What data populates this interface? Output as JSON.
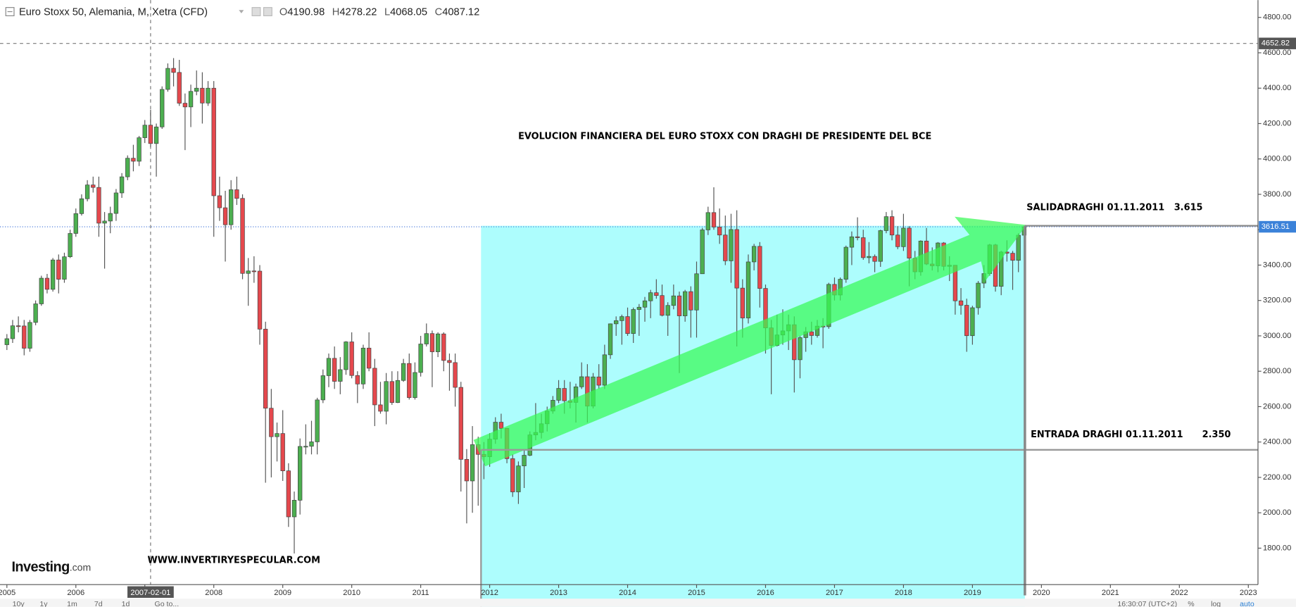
{
  "chart_data": {
    "type": "candlestick",
    "title": "Euro Stoxx 50, Alemania, M, Xetra (CFD)",
    "ohlc_labels": [
      "O",
      "H",
      "L",
      "C"
    ],
    "x": [
      "2005-01-01",
      "2005-02-01",
      "2005-03-01",
      "2005-04-01",
      "2005-05-01",
      "2005-06-01",
      "2005-07-01",
      "2005-08-01",
      "2005-09-01",
      "2005-10-01",
      "2005-11-01",
      "2005-12-01",
      "2006-01-01",
      "2006-02-01",
      "2006-03-01",
      "2006-04-01",
      "2006-05-01",
      "2006-06-01",
      "2006-07-01",
      "2006-08-01",
      "2006-09-01",
      "2006-10-01",
      "2006-11-01",
      "2006-12-01",
      "2007-01-01",
      "2007-02-01",
      "2007-03-01",
      "2007-04-01",
      "2007-05-01",
      "2007-06-01",
      "2007-07-01",
      "2007-08-01",
      "2007-09-01",
      "2007-10-01",
      "2007-11-01",
      "2007-12-01",
      "2008-01-01",
      "2008-02-01",
      "2008-03-01",
      "2008-04-01",
      "2008-05-01",
      "2008-06-01",
      "2008-07-01",
      "2008-08-01",
      "2008-09-01",
      "2008-10-01",
      "2008-11-01",
      "2008-12-01",
      "2009-01-01",
      "2009-02-01",
      "2009-03-01",
      "2009-04-01",
      "2009-05-01",
      "2009-06-01",
      "2009-07-01",
      "2009-08-01",
      "2009-09-01",
      "2009-10-01",
      "2009-11-01",
      "2009-12-01",
      "2010-01-01",
      "2010-02-01",
      "2010-03-01",
      "2010-04-01",
      "2010-05-01",
      "2010-06-01",
      "2010-07-01",
      "2010-08-01",
      "2010-09-01",
      "2010-10-01",
      "2010-11-01",
      "2010-12-01",
      "2011-01-01",
      "2011-02-01",
      "2011-03-01",
      "2011-04-01",
      "2011-05-01",
      "2011-06-01",
      "2011-07-01",
      "2011-08-01",
      "2011-09-01",
      "2011-10-01",
      "2011-11-01",
      "2011-12-01",
      "2012-01-01",
      "2012-02-01",
      "2012-03-01",
      "2012-04-01",
      "2012-05-01",
      "2012-06-01",
      "2012-07-01",
      "2012-08-01",
      "2012-09-01",
      "2012-10-01",
      "2012-11-01",
      "2012-12-01",
      "2013-01-01",
      "2013-02-01",
      "2013-03-01",
      "2013-04-01",
      "2013-05-01",
      "2013-06-01",
      "2013-07-01",
      "2013-08-01",
      "2013-09-01",
      "2013-10-01",
      "2013-11-01",
      "2013-12-01",
      "2014-01-01",
      "2014-02-01",
      "2014-03-01",
      "2014-04-01",
      "2014-05-01",
      "2014-06-01",
      "2014-07-01",
      "2014-08-01",
      "2014-09-01",
      "2014-10-01",
      "2014-11-01",
      "2014-12-01",
      "2015-01-01",
      "2015-02-01",
      "2015-03-01",
      "2015-04-01",
      "2015-05-01",
      "2015-06-01",
      "2015-07-01",
      "2015-08-01",
      "2015-09-01",
      "2015-10-01",
      "2015-11-01",
      "2015-12-01",
      "2016-01-01",
      "2016-02-01",
      "2016-03-01",
      "2016-04-01",
      "2016-05-01",
      "2016-06-01",
      "2016-07-01",
      "2016-08-01",
      "2016-09-01",
      "2016-10-01",
      "2016-11-01",
      "2016-12-01",
      "2017-01-01",
      "2017-02-01",
      "2017-03-01",
      "2017-04-01",
      "2017-05-01",
      "2017-06-01",
      "2017-07-01",
      "2017-08-01",
      "2017-09-01",
      "2017-10-01",
      "2017-11-01",
      "2017-12-01",
      "2018-01-01",
      "2018-02-01",
      "2018-03-01",
      "2018-04-01",
      "2018-05-01",
      "2018-06-01",
      "2018-07-01",
      "2018-08-01",
      "2018-09-01",
      "2018-10-01",
      "2018-11-01",
      "2018-12-01",
      "2019-01-01",
      "2019-02-01",
      "2019-03-01",
      "2019-04-01",
      "2019-05-01",
      "2019-06-01",
      "2019-07-01",
      "2019-08-01",
      "2019-09-01",
      "2019-10-01"
    ],
    "open": [
      2950,
      2984,
      3057,
      3056,
      2930,
      3076,
      3181,
      3326,
      3263,
      3429,
      3320,
      3447,
      3579,
      3691,
      3775,
      3853,
      3839,
      3637,
      3649,
      3692,
      3808,
      3899,
      4004,
      3987,
      4120,
      4190.98,
      4087.12,
      4181,
      4393,
      4512,
      4489,
      4315,
      4294,
      4382,
      4400,
      4316,
      4400,
      3792,
      3724,
      3628,
      3826,
      3777,
      3353,
      3367,
      3366,
      3038,
      2591,
      2430,
      2448,
      2237,
      1977,
      2071,
      2375,
      2376,
      2401,
      2638,
      2775,
      2873,
      2743,
      2809,
      2966,
      2776,
      2728,
      2931,
      2817,
      2610,
      2574,
      2742,
      2623,
      2748,
      2844,
      2651,
      2793,
      2954,
      3013,
      2910,
      3011,
      2861,
      2849,
      2709,
      2302,
      2180,
      2385,
      2330,
      2317,
      2416,
      2512,
      2477,
      2306,
      2118,
      2265,
      2325,
      2440,
      2454,
      2503,
      2575,
      2636,
      2703,
      2633,
      2624,
      2712,
      2769,
      2603,
      2768,
      2721,
      2893,
      3068,
      3086,
      3109,
      3013,
      3149,
      3162,
      3198,
      3244,
      3228,
      3116,
      3172,
      3226,
      3113,
      3250,
      3146,
      3351,
      3599,
      3697,
      3615,
      3570,
      3424,
      3601,
      3270,
      3101,
      3418,
      3506,
      3268,
      3045,
      2946,
      3005,
      3028,
      3063,
      2865,
      2990,
      3023,
      3002,
      3055,
      3052,
      3291,
      3231,
      3320,
      3501,
      3560,
      3555,
      3442,
      3449,
      3421,
      3595,
      3674,
      3570,
      3504,
      3609,
      3439,
      3362,
      3536,
      3406,
      3396,
      3525,
      3393,
      3399,
      3198,
      3173,
      3001,
      3159,
      3298,
      3352,
      3514,
      3280,
      3474,
      3467,
      3427,
      3569
    ],
    "high": [
      3010,
      3090,
      3110,
      3090,
      3090,
      3200,
      3340,
      3350,
      3440,
      3460,
      3470,
      3600,
      3720,
      3800,
      3880,
      3900,
      3900,
      3700,
      3730,
      3830,
      3920,
      4020,
      4080,
      4130,
      4220,
      4278.22,
      4200,
      4410,
      4540,
      4570,
      4560,
      4370,
      4420,
      4500,
      4490,
      4440,
      4440,
      3900,
      3820,
      3880,
      3900,
      3800,
      3440,
      3450,
      3400,
      3080,
      2700,
      2510,
      2580,
      2280,
      2120,
      2420,
      2500,
      2520,
      2650,
      2810,
      2900,
      2940,
      2880,
      2970,
      3020,
      2800,
      2950,
      3020,
      2870,
      2740,
      2790,
      2800,
      2800,
      2870,
      2900,
      2850,
      3000,
      3070,
      3030,
      3020,
      3020,
      2900,
      2900,
      2740,
      2360,
      2490,
      2430,
      2400,
      2450,
      2540,
      2560,
      2480,
      2330,
      2290,
      2360,
      2460,
      2620,
      2560,
      2600,
      2660,
      2750,
      2750,
      2740,
      2730,
      2850,
      2840,
      2790,
      2840,
      2950,
      3070,
      3110,
      3120,
      3160,
      3160,
      3180,
      3220,
      3260,
      3320,
      3290,
      3190,
      3290,
      3250,
      3260,
      3280,
      3420,
      3610,
      3730,
      3840,
      3720,
      3680,
      3690,
      3710,
      3320,
      3460,
      3520,
      3530,
      3290,
      3090,
      3120,
      3150,
      3120,
      3110,
      3000,
      3050,
      3080,
      3090,
      3100,
      3300,
      3330,
      3330,
      3510,
      3590,
      3670,
      3600,
      3530,
      3460,
      3600,
      3700,
      3710,
      3620,
      3690,
      3620,
      3480,
      3540,
      3610,
      3500,
      3530,
      3530,
      3450,
      3400,
      3270,
      3210,
      3170,
      3310,
      3400,
      3520,
      3520,
      3480,
      3540,
      3480,
      3580,
      3620
    ],
    "low": [
      2920,
      2960,
      3020,
      2890,
      2910,
      3060,
      3170,
      3240,
      3250,
      3240,
      3300,
      3440,
      3560,
      3680,
      3760,
      3810,
      3560,
      3380,
      3580,
      3650,
      3780,
      3880,
      3930,
      3960,
      4090,
      4068.05,
      3900,
      4170,
      4380,
      4410,
      4300,
      4050,
      4180,
      4360,
      4200,
      4300,
      3560,
      3650,
      3420,
      3600,
      3740,
      3320,
      3170,
      3300,
      2950,
      2170,
      2200,
      2290,
      2180,
      1920,
      1770,
      1990,
      2330,
      2330,
      2330,
      2620,
      2710,
      2700,
      2670,
      2780,
      2760,
      2620,
      2700,
      2800,
      2490,
      2560,
      2500,
      2610,
      2620,
      2740,
      2640,
      2640,
      2770,
      2940,
      2710,
      2880,
      2800,
      2690,
      2600,
      2120,
      1940,
      2000,
      2040,
      2190,
      2260,
      2390,
      2420,
      2280,
      2090,
      2050,
      2140,
      2320,
      2410,
      2420,
      2460,
      2560,
      2620,
      2560,
      2590,
      2510,
      2700,
      2510,
      2590,
      2700,
      2700,
      2870,
      3000,
      2950,
      3000,
      2960,
      3000,
      3080,
      3100,
      3210,
      3110,
      3000,
      3150,
      2790,
      3080,
      2990,
      2990,
      3350,
      3570,
      3600,
      3520,
      3400,
      3300,
      2940,
      2990,
      3070,
      3370,
      3160,
      2900,
      2670,
      2940,
      2950,
      2920,
      2680,
      2760,
      2910,
      2950,
      2990,
      2930,
      3040,
      3200,
      3200,
      3300,
      3400,
      3540,
      3430,
      3410,
      3360,
      3390,
      3580,
      3540,
      3490,
      3480,
      3280,
      3320,
      3340,
      3400,
      3370,
      3360,
      3370,
      3310,
      3120,
      3120,
      2910,
      2950,
      3120,
      3270,
      3340,
      3250,
      3230,
      3420,
      3260,
      3360,
      3430
    ],
    "close": [
      2984,
      3057,
      3056,
      2930,
      3076,
      3181,
      3326,
      3263,
      3429,
      3320,
      3447,
      3579,
      3691,
      3775,
      3853,
      3839,
      3637,
      3649,
      3692,
      3808,
      3899,
      4004,
      3987,
      4120,
      4190.98,
      4087.12,
      4181,
      4393,
      4512,
      4489,
      4315,
      4294,
      4382,
      4400,
      4316,
      4400,
      3792,
      3724,
      3628,
      3826,
      3777,
      3353,
      3367,
      3366,
      3038,
      2591,
      2430,
      2448,
      2237,
      1977,
      2071,
      2375,
      2376,
      2401,
      2638,
      2775,
      2873,
      2743,
      2809,
      2966,
      2776,
      2728,
      2931,
      2817,
      2610,
      2574,
      2742,
      2623,
      2748,
      2844,
      2651,
      2793,
      2954,
      3013,
      2910,
      3011,
      2861,
      2849,
      2709,
      2302,
      2180,
      2385,
      2330,
      2317,
      2416,
      2512,
      2477,
      2306,
      2118,
      2265,
      2325,
      2440,
      2454,
      2503,
      2575,
      2636,
      2703,
      2633,
      2624,
      2712,
      2769,
      2603,
      2768,
      2721,
      2893,
      3068,
      3086,
      3109,
      3013,
      3149,
      3162,
      3198,
      3244,
      3228,
      3116,
      3172,
      3226,
      3113,
      3250,
      3146,
      3351,
      3599,
      3697,
      3615,
      3570,
      3424,
      3601,
      3270,
      3101,
      3418,
      3506,
      3268,
      3045,
      2946,
      3005,
      3028,
      3063,
      2865,
      2990,
      3023,
      3002,
      3055,
      3052,
      3291,
      3231,
      3320,
      3501,
      3560,
      3555,
      3442,
      3449,
      3421,
      3595,
      3674,
      3570,
      3504,
      3609,
      3439,
      3362,
      3536,
      3406,
      3396,
      3525,
      3393,
      3399,
      3198,
      3173,
      3001,
      3159,
      3298,
      3352,
      3514,
      3280,
      3474,
      3467,
      3427,
      3569,
      3616.51
    ],
    "up_color": "#4caf50",
    "down_color": "#e5484d",
    "ylim": [
      1594,
      4898
    ],
    "yticks": [
      {
        "value": 1800,
        "label": "1800.00"
      },
      {
        "value": 2000,
        "label": "2000.00"
      },
      {
        "value": 2200,
        "label": "2200.00"
      },
      {
        "value": 2400,
        "label": "2400.00"
      },
      {
        "value": 2600,
        "label": "2600.00"
      },
      {
        "value": 2800,
        "label": "2800.00"
      },
      {
        "value": 3000,
        "label": "3000.00"
      },
      {
        "value": 3200,
        "label": "3200.00"
      },
      {
        "value": 3400,
        "label": "3400.00"
      },
      {
        "value": 3600,
        "label": "3600.00"
      },
      {
        "value": 3800,
        "label": "3800.00"
      },
      {
        "value": 4000,
        "label": "4000.00"
      },
      {
        "value": 4200,
        "label": "4200.00"
      },
      {
        "value": 4400,
        "label": "4400.00"
      },
      {
        "value": 4600,
        "label": "4600.00"
      },
      {
        "value": 4800,
        "label": "4800.00"
      }
    ],
    "xlim": [
      2004.9,
      2023.14
    ],
    "xticks": [
      2005,
      2006,
      2007,
      2008,
      2009,
      2010,
      2011,
      2012,
      2013,
      2014,
      2015,
      2016,
      2017,
      2018,
      2019,
      2020,
      2021,
      2022,
      2023
    ],
    "grid": false,
    "crosshair_price": 4652.82,
    "annotations": [
      "EVOLUCION FINANCIERA DEL EURO STOXX CON DRAGHI DE PRESIDENTE DEL BCE",
      "SALIDADRAGHI 01.11.2011   3.615",
      "ENTRADA DRAGHI 01.11.2011      2.350",
      "WWW.INVERTIRYESPECULAR.COM"
    ],
    "logo": {
      "name": "Investing",
      "suffix": ".com"
    },
    "toolbar": {
      "ranges": [
        "10y",
        "1y",
        "1m",
        "7d",
        "1d"
      ],
      "goto": "Go to...",
      "clock": "16:30:07 (UTC+2)",
      "options": [
        "%",
        "log",
        "auto"
      ]
    }
  }
}
